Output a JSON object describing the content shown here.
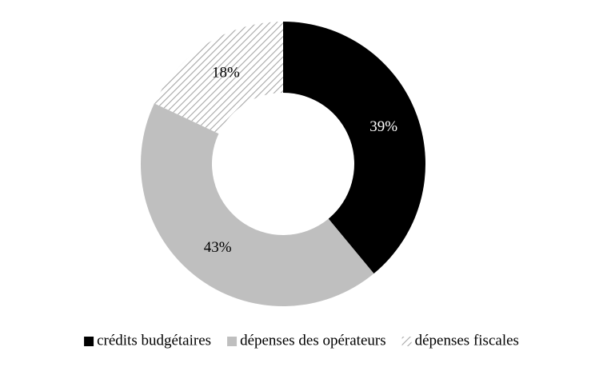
{
  "chart_data": {
    "type": "donut",
    "categories": [
      "crédits budgétaires",
      "dépenses des opérateurs",
      "dépenses fiscales"
    ],
    "values": [
      39,
      43,
      18
    ],
    "value_labels": [
      "39%",
      "43%",
      "18%"
    ],
    "colors": [
      "#000000",
      "#bfbfbf",
      "#a6a6a6"
    ],
    "hatched": [
      false,
      false,
      true
    ],
    "legend": "bottom"
  }
}
